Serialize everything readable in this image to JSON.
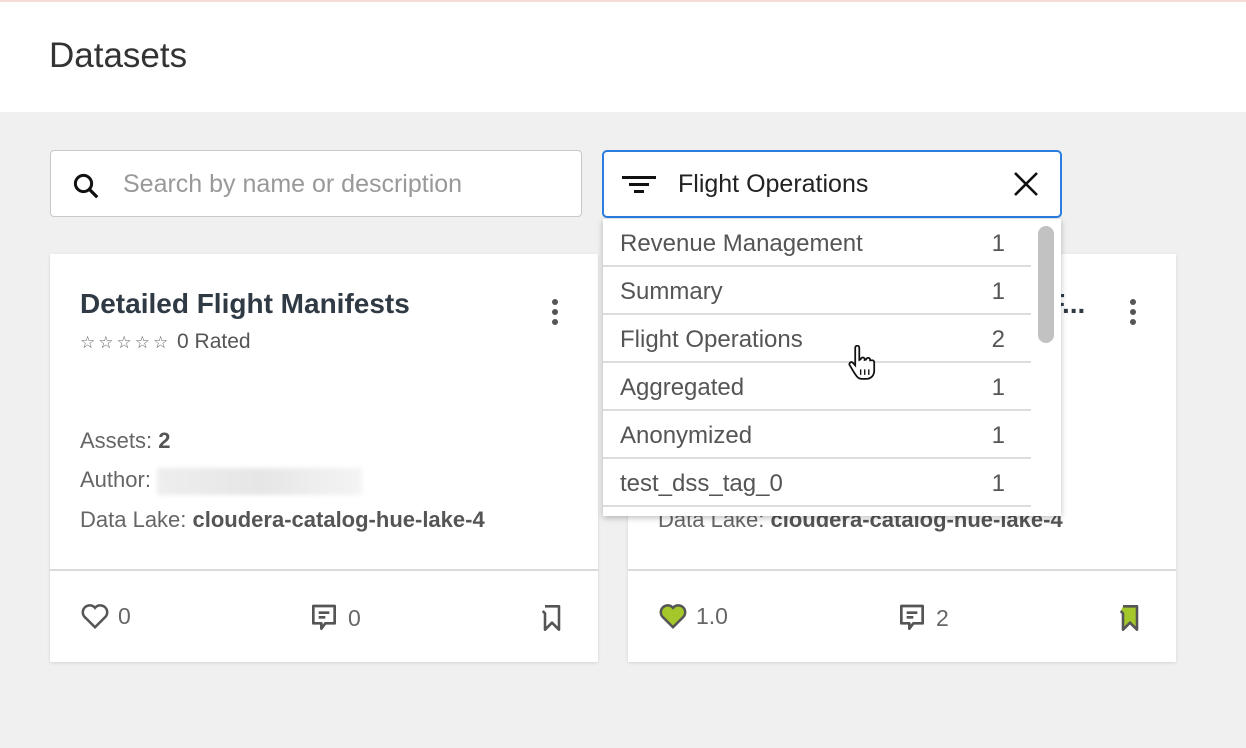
{
  "page": {
    "title": "Datasets"
  },
  "search": {
    "placeholder": "Search by name or description",
    "value": ""
  },
  "filter": {
    "value": "Flight Operations"
  },
  "dropdown": {
    "items": [
      {
        "label": "Revenue Management",
        "count": "1"
      },
      {
        "label": "Summary",
        "count": "1"
      },
      {
        "label": "Flight Operations",
        "count": "2"
      },
      {
        "label": "Aggregated",
        "count": "1"
      },
      {
        "label": "Anonymized",
        "count": "1"
      },
      {
        "label": "test_dss_tag_0",
        "count": "1"
      }
    ]
  },
  "cards": [
    {
      "title": "Detailed Flight Manifests",
      "stars": "☆☆☆☆☆",
      "rated": "0 Rated",
      "rating": 0,
      "assets_label": "Assets: ",
      "assets": "2",
      "author_label": "Author: ",
      "lake_label": "Data Lake: ",
      "lake": "cloudera-catalog-hue-lake-4",
      "likes": "0",
      "comments": "0",
      "liked": false,
      "bookmarked": false
    },
    {
      "title": "F...",
      "lake_label": "Data Lake: ",
      "lake": "cloudera-catalog-hue-lake-4",
      "likes": "1.0",
      "comments": "2",
      "liked": true,
      "bookmarked": true
    }
  ],
  "colors": {
    "accent": "#2b7de0",
    "liked": "#a4c82a"
  }
}
